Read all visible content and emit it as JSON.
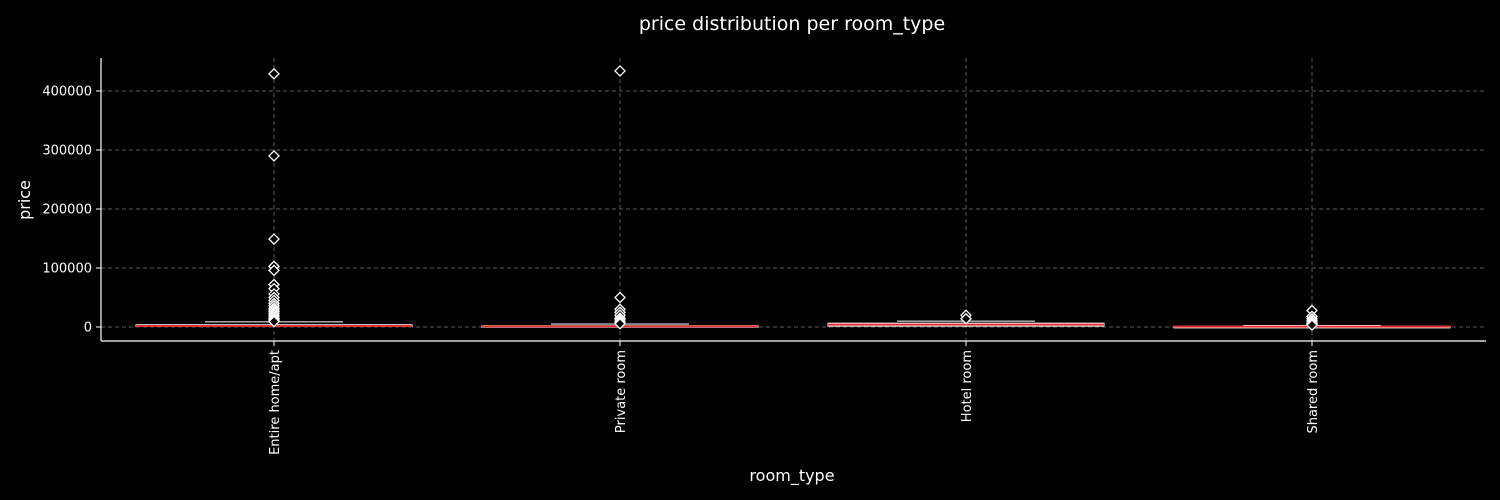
{
  "chart_data": {
    "type": "box",
    "title": "price distribution per room_type",
    "xlabel": "room_type",
    "ylabel": "price",
    "ylim": [
      -24000,
      457000
    ],
    "yticks": [
      0,
      100000,
      200000,
      300000,
      400000
    ],
    "ytick_labels": [
      "0",
      "100000",
      "200000",
      "300000",
      "400000"
    ],
    "grid": true,
    "categories": [
      "Entire home/apt",
      "Private room",
      "Hotel room",
      "Shared room"
    ],
    "boxes": [
      {
        "category": "Entire home/apt",
        "whisker_low": 0,
        "q1": 900,
        "median": 1700,
        "q3": 3800,
        "whisker_high": 8600,
        "outliers": [
          429000,
          290000,
          149000,
          103000,
          96000,
          72000,
          65000,
          56000,
          50000,
          45000,
          40000,
          36000,
          32000,
          29000,
          26000,
          23000,
          20000,
          17000,
          14000,
          12000,
          10000,
          9200
        ]
      },
      {
        "category": "Private room",
        "whisker_low": 0,
        "q1": 600,
        "median": 1100,
        "q3": 2300,
        "whisker_high": 5000,
        "outliers": [
          434000,
          50000,
          30000,
          25000,
          20000,
          15000,
          12000,
          9000,
          7000,
          5500
        ]
      },
      {
        "category": "Hotel room",
        "whisker_low": 0,
        "q1": 1500,
        "median": 4000,
        "q3": 6500,
        "whisker_high": 10000,
        "outliers": [
          20000,
          14000
        ]
      },
      {
        "category": "Shared room",
        "whisker_low": 0,
        "q1": 300,
        "median": 600,
        "q3": 1200,
        "whisker_high": 2500,
        "outliers": [
          28000,
          18000,
          14000,
          11000,
          8000,
          6000,
          4500,
          3200
        ]
      }
    ],
    "colors": {
      "background": "#000000",
      "box_fill": "#ffffff",
      "median": "#e03030",
      "grid": "#5a5a5a",
      "text": "#ffffff"
    }
  }
}
